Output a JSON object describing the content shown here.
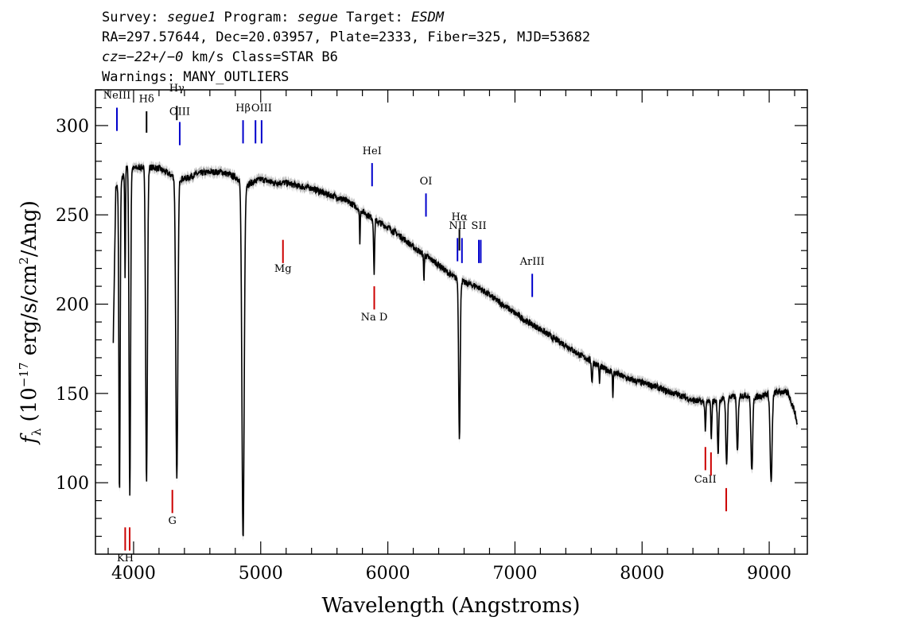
{
  "header": {
    "line1": {
      "survey_key": "Survey: ",
      "survey": "segue1",
      "program_key": " Program: ",
      "program": "segue",
      "target_key": " Target: ",
      "target": "ESDM"
    },
    "line2": "RA=297.57644, Dec=20.03957, Plate=2333, Fiber=325, MJD=53682",
    "line3": {
      "cz_key": "cz=",
      "cz": "−22+/−0",
      "rest": " km/s Class=STAR B6"
    },
    "line4": "Warnings: MANY_OUTLIERS"
  },
  "chart_data": {
    "type": "line",
    "xlabel": "Wavelength (Angstroms)",
    "ylabel": "f_λ (10^-17 erg/s/cm^2/Ang)",
    "xlim": [
      3700,
      9300
    ],
    "ylim": [
      60,
      320
    ],
    "x_ticks": [
      4000,
      5000,
      6000,
      7000,
      8000,
      9000
    ],
    "y_ticks": [
      100,
      150,
      200,
      250,
      300
    ],
    "series": [
      {
        "color": "#000000",
        "error_band_color": "#bbbbbb",
        "continuum": [
          [
            3840,
            180
          ],
          [
            3860,
            265
          ],
          [
            3900,
            268
          ],
          [
            3950,
            278
          ],
          [
            4000,
            276
          ],
          [
            4100,
            277
          ],
          [
            4200,
            276
          ],
          [
            4300,
            272
          ],
          [
            4400,
            270
          ],
          [
            4500,
            273
          ],
          [
            4600,
            274
          ],
          [
            4700,
            274
          ],
          [
            4800,
            271
          ],
          [
            4900,
            267
          ],
          [
            5000,
            270
          ],
          [
            5100,
            268
          ],
          [
            5200,
            268
          ],
          [
            5300,
            266
          ],
          [
            5400,
            265
          ],
          [
            5500,
            262
          ],
          [
            5600,
            260
          ],
          [
            5700,
            257
          ],
          [
            5800,
            252
          ],
          [
            5900,
            247
          ],
          [
            6000,
            243
          ],
          [
            6100,
            238
          ],
          [
            6200,
            232
          ],
          [
            6300,
            227
          ],
          [
            6400,
            222
          ],
          [
            6500,
            216
          ],
          [
            6600,
            212
          ],
          [
            6700,
            210
          ],
          [
            6800,
            205
          ],
          [
            6900,
            200
          ],
          [
            7000,
            195
          ],
          [
            7100,
            190
          ],
          [
            7200,
            186
          ],
          [
            7300,
            181
          ],
          [
            7400,
            177
          ],
          [
            7500,
            172
          ],
          [
            7600,
            168
          ],
          [
            7700,
            164
          ],
          [
            7800,
            161
          ],
          [
            7900,
            158
          ],
          [
            8000,
            156
          ],
          [
            8100,
            154
          ],
          [
            8200,
            151
          ],
          [
            8300,
            149
          ],
          [
            8400,
            146
          ],
          [
            8500,
            145
          ],
          [
            8600,
            146
          ],
          [
            8700,
            148
          ],
          [
            8800,
            149
          ],
          [
            8900,
            148
          ],
          [
            9000,
            150
          ],
          [
            9100,
            151
          ],
          [
            9150,
            150
          ],
          [
            9200,
            140
          ],
          [
            9220,
            133
          ]
        ],
        "absorption": [
          {
            "center": 3889,
            "depth": 175,
            "width": 5
          },
          {
            "center": 3970,
            "depth": 185,
            "width": 6
          },
          {
            "center": 3933,
            "depth": 60,
            "width": 3
          },
          {
            "center": 4102,
            "depth": 175,
            "width": 7
          },
          {
            "center": 4340,
            "depth": 170,
            "width": 8
          },
          {
            "center": 4861,
            "depth": 200,
            "width": 9
          },
          {
            "center": 5780,
            "depth": 18,
            "width": 3
          },
          {
            "center": 5892,
            "depth": 30,
            "width": 4
          },
          {
            "center": 6284,
            "depth": 14,
            "width": 3
          },
          {
            "center": 6563,
            "depth": 88,
            "width": 6
          },
          {
            "center": 7606,
            "depth": 12,
            "width": 4
          },
          {
            "center": 7665,
            "depth": 10,
            "width": 3
          },
          {
            "center": 7770,
            "depth": 13,
            "width": 3
          },
          {
            "center": 8498,
            "depth": 15,
            "width": 4
          },
          {
            "center": 8545,
            "depth": 20,
            "width": 4
          },
          {
            "center": 8598,
            "depth": 30,
            "width": 5
          },
          {
            "center": 8665,
            "depth": 38,
            "width": 6
          },
          {
            "center": 8750,
            "depth": 32,
            "width": 6
          },
          {
            "center": 8863,
            "depth": 42,
            "width": 7
          },
          {
            "center": 9015,
            "depth": 50,
            "width": 8
          }
        ]
      }
    ],
    "line_markers": [
      {
        "label": "NeIII",
        "x": 3869,
        "y_top": 310,
        "y_bot": 297,
        "label_y": 315,
        "color": "#0000cc"
      },
      {
        "label": "Hδ",
        "x": 4102,
        "y_top": 308,
        "y_bot": 296,
        "label_y": 313,
        "color": "#000000"
      },
      {
        "label": "Hγ",
        "x": 4340,
        "y_top": 311,
        "y_bot": 303,
        "label_y": 319,
        "color": "#000000"
      },
      {
        "label": "OIII",
        "x": 4363,
        "y_top": 302,
        "y_bot": 289,
        "label_y": 306,
        "color": "#0000cc"
      },
      {
        "label": "Hβ",
        "x": 4861,
        "y_top": 303,
        "y_bot": 290,
        "label_y": 308,
        "color": "#0000cc"
      },
      {
        "label": "OIII",
        "x": 4959,
        "y_top": 303,
        "y_bot": 290,
        "label_y": null,
        "color": "#0000cc"
      },
      {
        "label": "OIII",
        "x": 5007,
        "y_top": 303,
        "y_bot": 290,
        "label_y": 308,
        "color": "#0000cc"
      },
      {
        "label": "HeI",
        "x": 5876,
        "y_top": 279,
        "y_bot": 266,
        "label_y": 284,
        "color": "#0000cc"
      },
      {
        "label": "OI",
        "x": 6300,
        "y_top": 262,
        "y_bot": 249,
        "label_y": 267,
        "color": "#0000cc"
      },
      {
        "label": "NII",
        "x": 6548,
        "y_top": 237,
        "y_bot": 224,
        "label_y": 242,
        "color": "#0000cc"
      },
      {
        "label": "Hα",
        "x": 6563,
        "y_top": 242,
        "y_bot": 230,
        "label_y": 247,
        "color": "#000000"
      },
      {
        "label": "NII",
        "x": 6583,
        "y_top": 237,
        "y_bot": 223,
        "label_y": null,
        "color": "#0000cc"
      },
      {
        "label": "SII",
        "x": 6716,
        "y_top": 236,
        "y_bot": 223,
        "label_y": 242,
        "color": "#0000cc"
      },
      {
        "label": "SII",
        "x": 6731,
        "y_top": 236,
        "y_bot": 223,
        "label_y": null,
        "color": "#0000cc"
      },
      {
        "label": "ArIII",
        "x": 7136,
        "y_top": 217,
        "y_bot": 204,
        "label_y": 222,
        "color": "#0000cc"
      },
      {
        "label": "Mg",
        "x": 5175,
        "y_top": 236,
        "y_bot": 223,
        "label_y": 218,
        "color": "#cc0000"
      },
      {
        "label": "Na D",
        "x": 5893,
        "y_top": 210,
        "y_bot": 197,
        "label_y": 191,
        "color": "#cc0000"
      },
      {
        "label": "G",
        "x": 4305,
        "y_top": 96,
        "y_bot": 83,
        "label_y": 77,
        "color": "#cc0000"
      },
      {
        "label": "KH",
        "x": 3934,
        "y_top": 75,
        "y_bot": 62,
        "label_y": 56,
        "color": "#cc0000"
      },
      {
        "label": "",
        "x": 3969,
        "y_top": 75,
        "y_bot": 62,
        "label_y": null,
        "color": "#cc0000"
      },
      {
        "label": "CaII",
        "x": 8498,
        "y_top": 120,
        "y_bot": 107,
        "label_y": 100,
        "color": "#cc0000"
      },
      {
        "label": "",
        "x": 8542,
        "y_top": 117,
        "y_bot": 104,
        "label_y": null,
        "color": "#cc0000"
      },
      {
        "label": "",
        "x": 8662,
        "y_top": 97,
        "y_bot": 84,
        "label_y": null,
        "color": "#cc0000"
      }
    ]
  }
}
